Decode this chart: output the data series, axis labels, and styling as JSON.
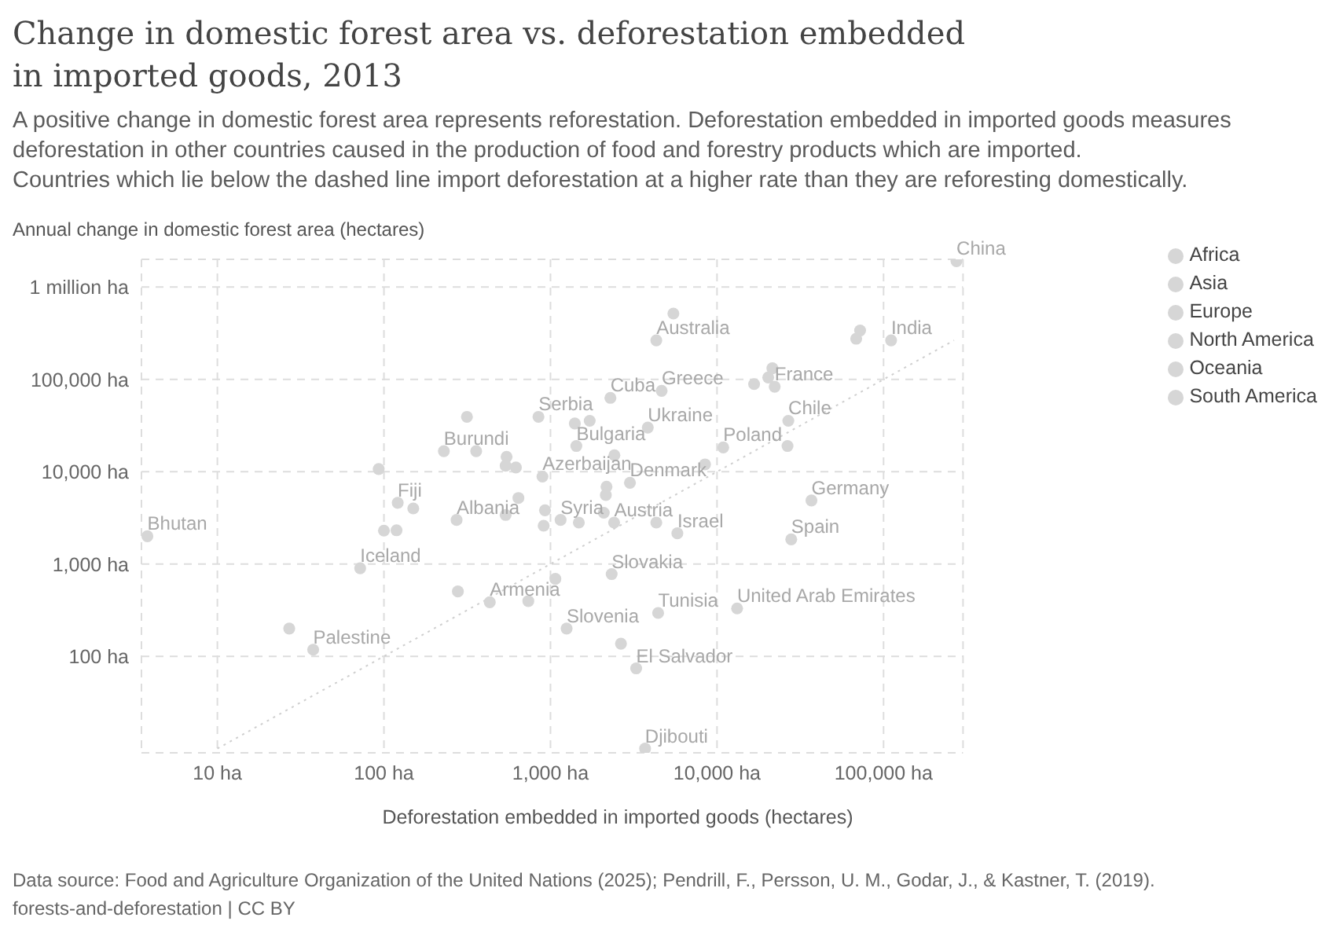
{
  "chart_data": {
    "type": "scatter",
    "title": "Change in domestic forest area vs. deforestation embedded in imported goods, 2013",
    "subtitle": "A positive change in domestic forest area represents reforestation. Deforestation embedded in imported goods measures deforestation in other countries caused in the production of food and forestry products which are imported.\nCountries which lie below the dashed line import deforestation at a higher rate than they are reforesting domestically.",
    "xlabel": "Deforestation embedded in imported goods (hectares)",
    "ylabel": "Annual change in domestic forest area (hectares)",
    "annotations": [
      "Data source: Food and Agriculture Organization of the United Nations (2025); Pendrill, F., Persson, U. M., Godar, J., & Kastner, T. (2019).",
      "forests-and-deforestation | CC BY"
    ],
    "log": "xy",
    "grid": true,
    "legend": "top right",
    "marker": "circle",
    "xlim": [
      3.5,
      300000
    ],
    "ylim": [
      9,
      2000000
    ],
    "xticks": [
      {
        "value": 10,
        "label": "10 ha"
      },
      {
        "value": 100,
        "label": "100 ha"
      },
      {
        "value": 1000,
        "label": "1,000 ha"
      },
      {
        "value": 10000,
        "label": "10,000 ha"
      },
      {
        "value": 100000,
        "label": "100,000 ha"
      }
    ],
    "yticks": [
      {
        "value": 100,
        "label": "100 ha"
      },
      {
        "value": 1000,
        "label": "1,000 ha"
      },
      {
        "value": 10000,
        "label": "10,000 ha"
      },
      {
        "value": 100000,
        "label": "100,000 ha"
      },
      {
        "value": 1000000,
        "label": "1 million ha"
      }
    ],
    "series": [
      {
        "name": "Africa",
        "color": "#d6d6d6",
        "x": [
          229,
          4430,
          3700,
          93,
          27,
          100,
          1070
        ],
        "values": [
          16700,
          295,
          10,
          10700,
          200,
          2300,
          690
        ],
        "value_labels": [
          "Burundi",
          "Tunisia",
          "Djibouti",
          null,
          null,
          null,
          null
        ]
      },
      {
        "name": "Asia",
        "color": "#d6d6d6",
        "x": [
          3.8,
          274000,
          111000,
          895,
          1150,
          5780,
          432,
          37.6,
          13200,
          68500,
          72300,
          2650,
          278,
          2090
        ],
        "values": [
          2000,
          1910000,
          265000,
          8850,
          3000,
          2150,
          385,
          118,
          330,
          276000,
          339000,
          137,
          504,
          3590
        ],
        "value_labels": [
          "Bhutan",
          "China",
          "India",
          "Azerbaijan",
          "Syria",
          "Israel",
          "Armenia",
          "Palestine",
          "United Arab Emirates",
          null,
          null,
          null,
          null,
          null
        ]
      },
      {
        "name": "Europe",
        "color": "#d6d6d6",
        "x": [
          847,
          1430,
          3840,
          22200,
          4650,
          10900,
          3000,
          2410,
          36900,
          27900,
          2330,
          1250,
          273,
          72,
          20300,
          21500,
          16700,
          1400,
          1720,
          26500,
          2420,
          8470,
          2170,
          2150,
          1480,
          4320,
          545,
          538,
          620,
          538,
          642,
          927,
          910,
          736
        ],
        "values": [
          39300,
          19000,
          30100,
          83400,
          75200,
          18300,
          7590,
          2810,
          4880,
          1850,
          778,
          200,
          3000,
          900,
          105000,
          132000,
          89000,
          33300,
          35600,
          19000,
          15100,
          12000,
          6870,
          5590,
          2810,
          2810,
          14500,
          11600,
          11100,
          3400,
          5190,
          3820,
          2600,
          396
        ],
        "value_labels": [
          "Serbia",
          "Bulgaria",
          "Ukraine",
          "France",
          "Greece",
          "Poland",
          "Denmark",
          "Austria",
          "Germany",
          "Spain",
          "Slovakia",
          "Slovenia",
          "Albania",
          "Iceland",
          null,
          null,
          null,
          null,
          null,
          null,
          null,
          null,
          null,
          null,
          null,
          null,
          null,
          null,
          null,
          null,
          null,
          null,
          null,
          null
        ]
      },
      {
        "name": "North America",
        "color": "#d6d6d6",
        "x": [
          2290,
          3270,
          119,
          150
        ],
        "values": [
          63100,
          74,
          2320,
          4000
        ],
        "value_labels": [
          "Cuba",
          "El Salvador",
          null,
          null
        ]
      },
      {
        "name": "Oceania",
        "color": "#d6d6d6",
        "x": [
          4320,
          121,
          5470
        ],
        "values": [
          265000,
          4600,
          517000
        ],
        "value_labels": [
          "Australia",
          "Fiji",
          null
        ]
      },
      {
        "name": "South America",
        "color": "#d6d6d6",
        "x": [
          26800,
          315,
          358
        ],
        "values": [
          35600,
          39300,
          16700
        ],
        "value_labels": [
          "Chile",
          null,
          null
        ]
      },
      {
        "type": "line",
        "color": "#cfcfcf",
        "line_style": "dotted",
        "marker": "none",
        "x": [
          10,
          265000
        ],
        "values": [
          10,
          265000
        ]
      }
    ]
  }
}
